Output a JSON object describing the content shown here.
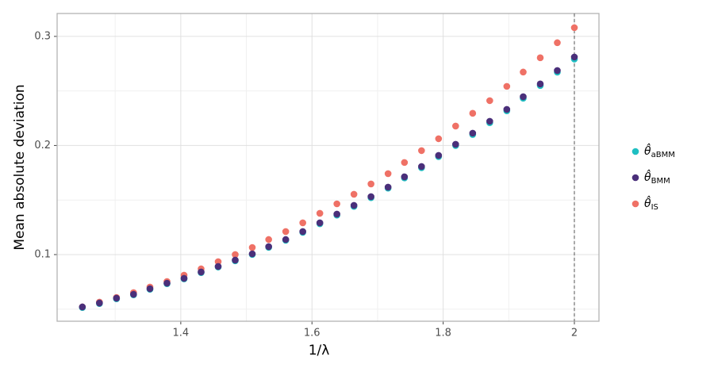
{
  "chart_data": {
    "type": "scatter",
    "xlabel": "1/λ",
    "ylabel": "Mean absolute deviation",
    "legend_symbol": "θ̂",
    "x": [
      1.25,
      1.276,
      1.302,
      1.328,
      1.353,
      1.379,
      1.405,
      1.431,
      1.457,
      1.483,
      1.509,
      1.534,
      1.56,
      1.586,
      1.612,
      1.638,
      1.664,
      1.69,
      1.716,
      1.741,
      1.767,
      1.793,
      1.819,
      1.845,
      1.871,
      1.897,
      1.922,
      1.948,
      1.974,
      2.0
    ],
    "series": [
      {
        "name": "IS",
        "color": "#ef7166",
        "values": [
          0.052,
          0.0564,
          0.0607,
          0.0651,
          0.0702,
          0.0753,
          0.0811,
          0.0869,
          0.0935,
          0.1,
          0.1065,
          0.1138,
          0.1211,
          0.1291,
          0.1378,
          0.1465,
          0.1553,
          0.1647,
          0.1742,
          0.1844,
          0.1953,
          0.2062,
          0.2178,
          0.2295,
          0.2411,
          0.2542,
          0.2673,
          0.2804,
          0.2942,
          0.308
        ]
      },
      {
        "name": "aBMM",
        "color": "#1fbfc2",
        "values": [
          0.0515,
          0.0551,
          0.0595,
          0.0631,
          0.0682,
          0.0733,
          0.0777,
          0.0835,
          0.0886,
          0.0943,
          0.1001,
          0.1066,
          0.1131,
          0.1204,
          0.1283,
          0.1362,
          0.1442,
          0.1522,
          0.1609,
          0.1703,
          0.1796,
          0.1898,
          0.2,
          0.2101,
          0.2209,
          0.2318,
          0.2433,
          0.255,
          0.2672,
          0.2792
        ]
      },
      {
        "name": "BMM",
        "color": "#4a2f7a",
        "values": [
          0.052,
          0.0556,
          0.06,
          0.0636,
          0.0687,
          0.0738,
          0.0782,
          0.084,
          0.0891,
          0.0949,
          0.1007,
          0.1073,
          0.1138,
          0.1211,
          0.1291,
          0.1371,
          0.1451,
          0.1531,
          0.1618,
          0.1713,
          0.1807,
          0.1909,
          0.2011,
          0.2113,
          0.2222,
          0.2331,
          0.2447,
          0.2564,
          0.2687,
          0.2811
        ]
      }
    ],
    "xlim": [
      1.2115,
      2.0375
    ],
    "ylim": [
      0.0389,
      0.321
    ],
    "xticks": [
      1.4,
      1.6,
      1.8,
      {
        "value": 2.0,
        "label": "2"
      }
    ],
    "yticks": [
      0.1,
      0.2,
      0.3
    ],
    "xminor": [
      1.3,
      1.5,
      1.7,
      1.9
    ],
    "yminor": [
      0.05,
      0.15,
      0.25
    ],
    "vline": 2.0,
    "grid": true,
    "legend": "right"
  }
}
